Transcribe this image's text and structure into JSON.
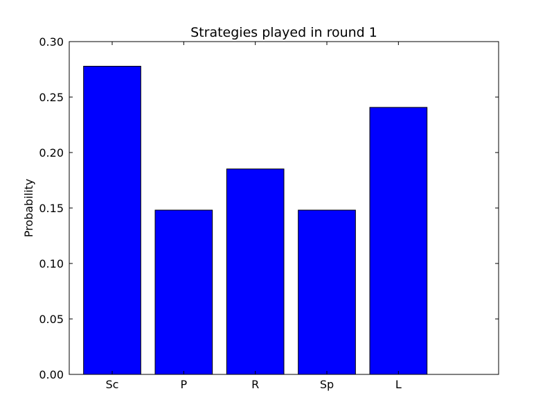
{
  "chart_data": {
    "type": "bar",
    "title": "Strategies played in round 1",
    "xlabel": "",
    "ylabel": "Probability",
    "categories": [
      "Sc",
      "P",
      "R",
      "Sp",
      "L"
    ],
    "values": [
      0.2778,
      0.1481,
      0.1852,
      0.1481,
      0.2407
    ],
    "ylim": [
      0.0,
      0.3
    ],
    "yticks": [
      0.0,
      0.05,
      0.1,
      0.15,
      0.2,
      0.25,
      0.3
    ],
    "ytick_labels": [
      "0.00",
      "0.05",
      "0.10",
      "0.15",
      "0.20",
      "0.25",
      "0.30"
    ],
    "bar_color": "#0000ff",
    "bar_edge_color": "#000000",
    "grid": false,
    "legend": null
  }
}
